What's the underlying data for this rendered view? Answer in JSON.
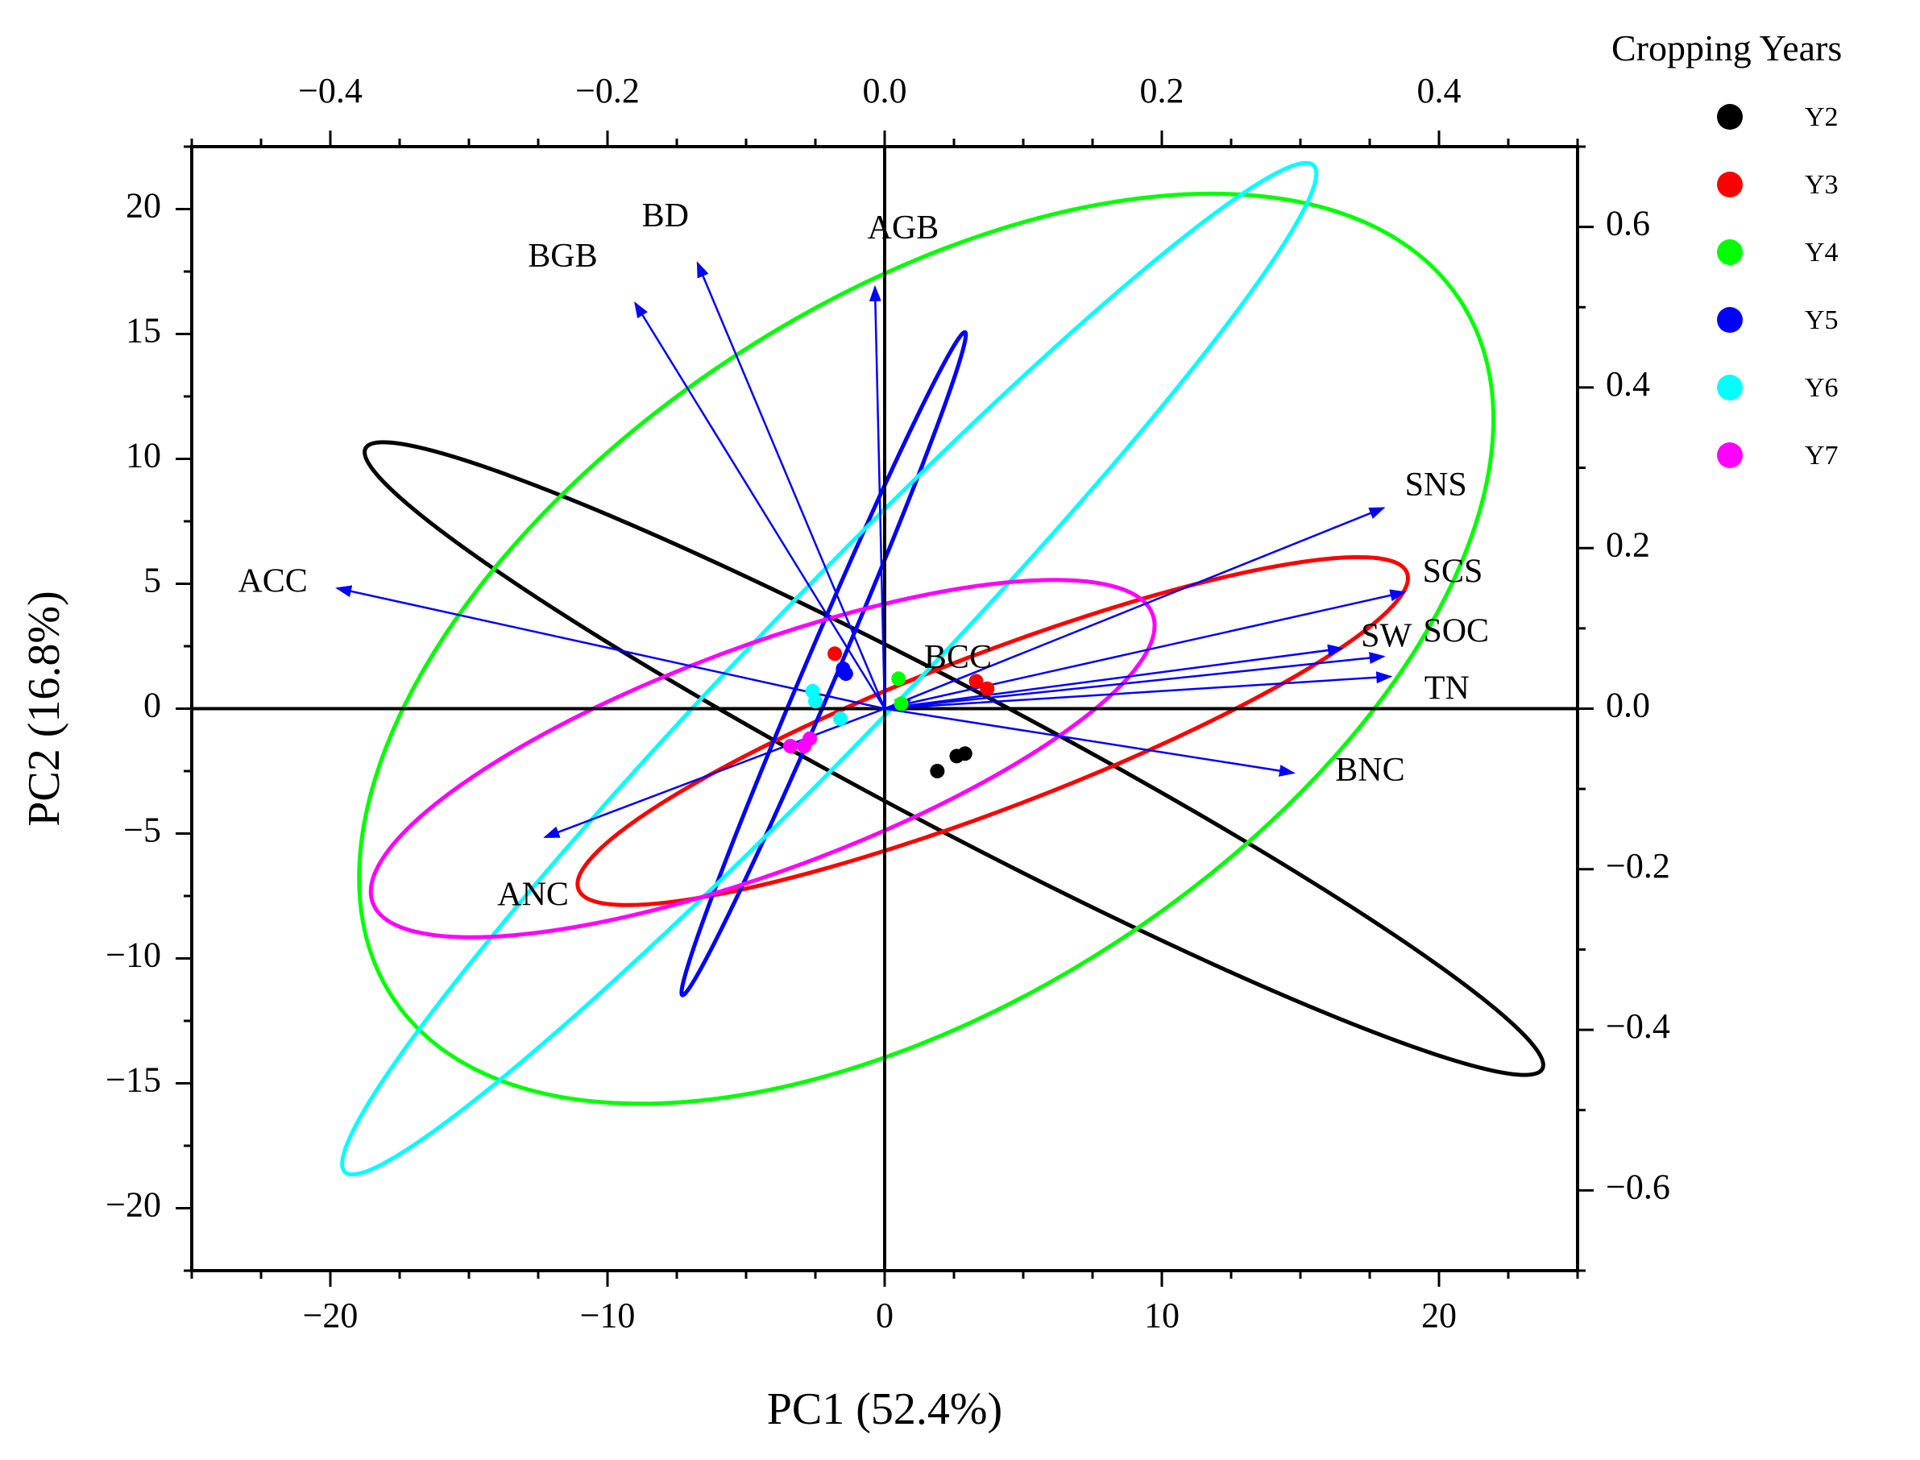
{
  "chart_data": {
    "type": "scatter",
    "subtype": "pca-biplot",
    "xlabel": "PC1 (52.4%)",
    "ylabel": "PC2 (16.8%)",
    "xlim": [
      -25,
      25
    ],
    "ylim": [
      -22.5,
      22.5
    ],
    "x_ticks": [
      -20,
      -10,
      0,
      10,
      20
    ],
    "x_tick_labels": [
      "−20",
      "−10",
      "0",
      "10",
      "20"
    ],
    "y_ticks": [
      -20,
      -15,
      -10,
      -5,
      0,
      5,
      10,
      15,
      20
    ],
    "y_tick_labels": [
      "−20",
      "−15",
      "−10",
      "−5",
      "0",
      "5",
      "10",
      "15",
      "20"
    ],
    "loadings_axes": {
      "top_lim": [
        -0.5,
        0.5
      ],
      "top_ticks": [
        -0.4,
        -0.2,
        0.0,
        0.2,
        0.4
      ],
      "top_tick_labels": [
        "−0.4",
        "−0.2",
        "0.0",
        "0.2",
        "0.4"
      ],
      "right_lim": [
        -0.7,
        0.7
      ],
      "right_ticks": [
        -0.6,
        -0.4,
        -0.2,
        0.0,
        0.2,
        0.4,
        0.6
      ],
      "right_tick_labels": [
        "−0.6",
        "−0.4",
        "−0.2",
        "0.0",
        "0.2",
        "0.4",
        "0.6"
      ]
    },
    "legend": {
      "title": "Cropping Years",
      "position": "right-top"
    },
    "arrow_color": "#0000ff",
    "series": [
      {
        "name": "Y2",
        "color": "#000000",
        "points": [
          [
            1.9,
            -2.5
          ],
          [
            2.6,
            -1.9
          ],
          [
            2.9,
            -1.8
          ]
        ],
        "ellipse": {
          "cx": 2.5,
          "cy": -2.0,
          "rx": 24.0,
          "ry": 2.8,
          "angle_deg": -27.8
        }
      },
      {
        "name": "Y3",
        "color": "#ff0000",
        "points": [
          [
            3.3,
            1.1
          ],
          [
            3.7,
            0.8
          ],
          [
            -1.8,
            2.2
          ]
        ],
        "ellipse": {
          "cx": 3.9,
          "cy": -0.9,
          "rx": 16.0,
          "ry": 3.1,
          "angle_deg": 20.9
        }
      },
      {
        "name": "Y4",
        "color": "#00ff00",
        "points": [
          [
            0.5,
            1.2
          ],
          [
            0.6,
            0.2
          ]
        ],
        "ellipse": {
          "cx": 1.5,
          "cy": 2.4,
          "rx": 23.0,
          "ry": 14.0,
          "angle_deg": 33.1
        }
      },
      {
        "name": "Y5",
        "color": "#0000ff",
        "points": [
          [
            -1.5,
            1.6
          ],
          [
            -1.4,
            1.4
          ],
          [
            -1.5,
            1.5
          ]
        ],
        "ellipse": {
          "cx": -2.2,
          "cy": 1.8,
          "rx": 13.0,
          "ry": 0.65,
          "angle_deg": 66.9
        }
      },
      {
        "name": "Y6",
        "color": "#00ffff",
        "points": [
          [
            -2.6,
            0.7
          ],
          [
            -2.5,
            0.3
          ],
          [
            -1.6,
            -0.4
          ]
        ],
        "ellipse": {
          "cx": -2.0,
          "cy": 1.6,
          "rx": 25.2,
          "ry": 2.9,
          "angle_deg": 46.1
        }
      },
      {
        "name": "Y7",
        "color": "#ff00ff",
        "points": [
          [
            -3.4,
            -1.5
          ],
          [
            -2.9,
            -1.5
          ],
          [
            -2.7,
            -1.2
          ]
        ],
        "ellipse": {
          "cx": -4.4,
          "cy": -2.0,
          "rx": 15.0,
          "ry": 4.5,
          "angle_deg": 20.3
        }
      }
    ],
    "loadings": [
      {
        "name": "AGB",
        "x": -0.007,
        "y": 0.525
      },
      {
        "name": "BD",
        "x": -0.135,
        "y": 0.555
      },
      {
        "name": "BGB",
        "x": -0.18,
        "y": 0.505
      },
      {
        "name": "ACC",
        "x": -0.395,
        "y": 0.15
      },
      {
        "name": "ANC",
        "x": -0.245,
        "y": -0.16
      },
      {
        "name": "BCC",
        "x": 0.018,
        "y": 0.01
      },
      {
        "name": "BNC",
        "x": 0.295,
        "y": -0.08
      },
      {
        "name": "SNS",
        "x": 0.36,
        "y": 0.25
      },
      {
        "name": "SCS",
        "x": 0.375,
        "y": 0.145
      },
      {
        "name": "SW",
        "x": 0.33,
        "y": 0.075
      },
      {
        "name": "SOC",
        "x": 0.36,
        "y": 0.065
      },
      {
        "name": "TN",
        "x": 0.365,
        "y": 0.04
      }
    ]
  }
}
